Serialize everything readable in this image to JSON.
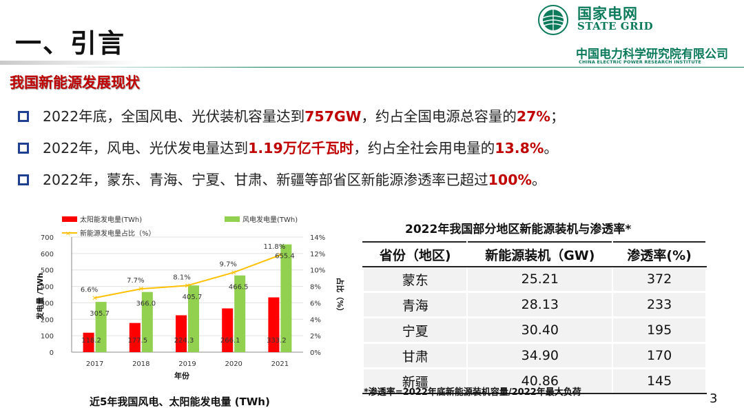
{
  "header": {
    "title": "一、引言",
    "logo_cn": "国家电网",
    "logo_en": "STATE GRID",
    "institute_cn": "中国电力科学研究院有限公司",
    "institute_en": "CHINA ELECTRIC POWER RESEARCH INSTITUTE"
  },
  "section": {
    "heading": "我国新能源发展现状"
  },
  "bullets": [
    {
      "a": "2022年底，全国风电、光伏装机容量达到",
      "b": "757GW",
      "c": "，约占全国电源总容量的",
      "d": "27%",
      "e": "；"
    },
    {
      "a": "2022年，风电、光伏发电量达到",
      "b": "1.19万亿千瓦时",
      "c": "，约占全社会用电量的",
      "d": "13.8%",
      "e": "。"
    },
    {
      "a": "2022年，蒙东、青海、宁夏、甘肃、新疆等部省区新能源渗透率已超过",
      "b": "100%",
      "c": "。",
      "d": "",
      "e": ""
    }
  ],
  "chart_data": {
    "type": "bar",
    "categories": [
      "2017",
      "2018",
      "2019",
      "2020",
      "2021"
    ],
    "series": [
      {
        "name": "太阳能发电量(TWh)",
        "values": [
          118.2,
          177.5,
          224.3,
          266.1,
          333.2
        ],
        "color": "#ff0000"
      },
      {
        "name": "风电发电量(TWh)",
        "values": [
          305.7,
          366.0,
          405.7,
          466.5,
          655.4
        ],
        "color": "#92d050"
      },
      {
        "name": "新能源发电量占比（%）",
        "type": "line",
        "axis": "right",
        "values": [
          6.6,
          7.7,
          8.1,
          9.7,
          11.8
        ],
        "color": "#ffc000"
      }
    ],
    "solar_labels": [
      "118.2",
      "177.5",
      "224.3",
      "266.1",
      "333.2"
    ],
    "wind_labels": [
      "305.7",
      "366.0",
      "405.7",
      "466.5",
      "655.4"
    ],
    "share_labels": [
      "6.6%",
      "7.7%",
      "8.1%",
      "9.7%",
      "11.8%"
    ],
    "ylim": [
      0,
      700
    ],
    "y_ticks": [
      "0",
      "100",
      "200",
      "300",
      "400",
      "500",
      "600",
      "700"
    ],
    "y2lim": [
      0,
      14
    ],
    "y2_ticks": [
      "0%",
      "2%",
      "4%",
      "6%",
      "8%",
      "10%",
      "12%",
      "14%"
    ],
    "xlabel": "年份",
    "ylabel": "发电量 /TWh",
    "y2label": "占比（%）",
    "legend": "top",
    "caption": "近5年我国风电、太阳能发电量 (TWh)"
  },
  "table": {
    "title": "2022年我国部分地区新能源装机与渗透率*",
    "headers": [
      "省份（地区)",
      "新能源装机（GW)",
      "渗透率(%)"
    ],
    "rows": [
      [
        "蒙东",
        "25.21",
        "372"
      ],
      [
        "青海",
        "28.13",
        "233"
      ],
      [
        "宁夏",
        "30.40",
        "195"
      ],
      [
        "甘肃",
        "34.90",
        "170"
      ],
      [
        "新疆",
        "40.86",
        "145"
      ]
    ],
    "note": "*渗透率=2022年底新能源装机容量/2022年最大负荷"
  },
  "page_number": "3"
}
